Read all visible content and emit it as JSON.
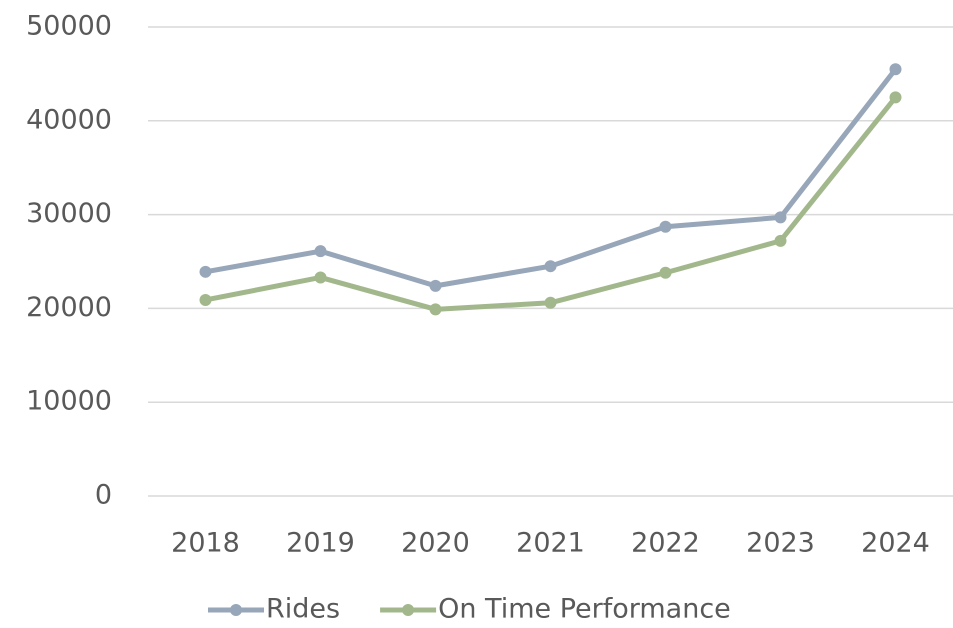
{
  "chart_data": {
    "type": "line",
    "categories": [
      "2018",
      "2019",
      "2020",
      "2021",
      "2022",
      "2023",
      "2024"
    ],
    "series": [
      {
        "name": "Rides",
        "color": "#97a6b9",
        "values": [
          23900,
          26100,
          22400,
          24500,
          28700,
          29700,
          45500
        ]
      },
      {
        "name": "On Time Performance",
        "color": "#a2b88c",
        "values": [
          20900,
          23300,
          19900,
          20600,
          23800,
          27200,
          42500
        ]
      }
    ],
    "ylim": [
      0,
      50000
    ],
    "yticks": [
      0,
      10000,
      20000,
      30000,
      40000,
      50000
    ],
    "grid": true,
    "legend": "bottom"
  }
}
